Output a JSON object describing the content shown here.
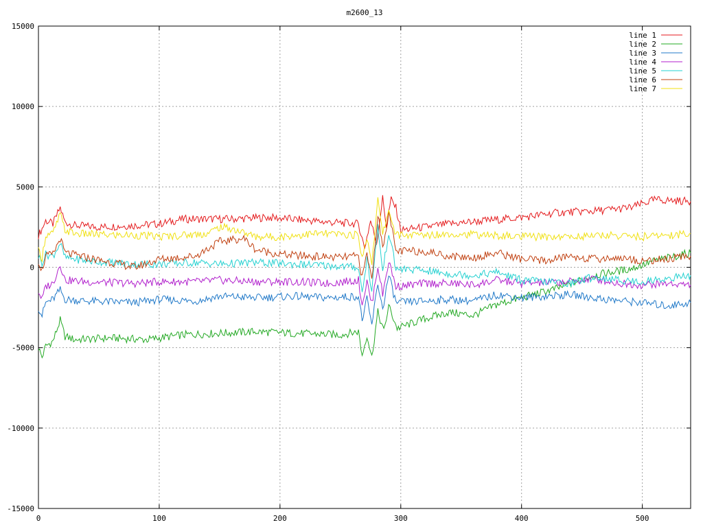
{
  "chart_data": {
    "type": "line",
    "title": "m2600_13",
    "xlabel": "",
    "ylabel": "",
    "xlim": [
      0,
      540
    ],
    "ylim": [
      -15000,
      15000
    ],
    "x_ticks": [
      "0",
      "100",
      "200",
      "300",
      "400",
      "500"
    ],
    "y_ticks": [
      "15000",
      "10000",
      "5000",
      "0",
      "-5000",
      "-10000",
      "-15000"
    ],
    "grid": true,
    "legend_position": "top-right",
    "series": [
      {
        "name": "line 1",
        "color": "#e41a1c",
        "points": [
          [
            0,
            2000
          ],
          [
            3,
            2400
          ],
          [
            6,
            2900
          ],
          [
            12,
            2700
          ],
          [
            18,
            3700
          ],
          [
            22,
            2800
          ],
          [
            30,
            2600
          ],
          [
            50,
            2500
          ],
          [
            80,
            2600
          ],
          [
            100,
            2700
          ],
          [
            120,
            3000
          ],
          [
            140,
            3000
          ],
          [
            160,
            3000
          ],
          [
            190,
            3100
          ],
          [
            210,
            3000
          ],
          [
            240,
            2800
          ],
          [
            265,
            2700
          ],
          [
            270,
            1200
          ],
          [
            275,
            2900
          ],
          [
            280,
            1500
          ],
          [
            285,
            4300
          ],
          [
            288,
            2600
          ],
          [
            292,
            4200
          ],
          [
            296,
            3700
          ],
          [
            300,
            2300
          ],
          [
            320,
            2500
          ],
          [
            340,
            2700
          ],
          [
            370,
            2900
          ],
          [
            400,
            3100
          ],
          [
            430,
            3400
          ],
          [
            460,
            3500
          ],
          [
            490,
            3700
          ],
          [
            510,
            4200
          ],
          [
            540,
            4100
          ]
        ]
      },
      {
        "name": "line 2",
        "color": "#22a822",
        "points": [
          [
            0,
            -5000
          ],
          [
            3,
            -5600
          ],
          [
            6,
            -4900
          ],
          [
            12,
            -4600
          ],
          [
            18,
            -3300
          ],
          [
            22,
            -4300
          ],
          [
            30,
            -4500
          ],
          [
            60,
            -4400
          ],
          [
            90,
            -4500
          ],
          [
            120,
            -4200
          ],
          [
            150,
            -4100
          ],
          [
            180,
            -4000
          ],
          [
            210,
            -4100
          ],
          [
            250,
            -4200
          ],
          [
            265,
            -4000
          ],
          [
            268,
            -5500
          ],
          [
            272,
            -4200
          ],
          [
            276,
            -5600
          ],
          [
            281,
            -2800
          ],
          [
            286,
            -4000
          ],
          [
            290,
            -2400
          ],
          [
            297,
            -3800
          ],
          [
            320,
            -3200
          ],
          [
            340,
            -2800
          ],
          [
            360,
            -3000
          ],
          [
            380,
            -2300
          ],
          [
            400,
            -1900
          ],
          [
            430,
            -1300
          ],
          [
            460,
            -500
          ],
          [
            490,
            -100
          ],
          [
            510,
            400
          ],
          [
            540,
            900
          ]
        ]
      },
      {
        "name": "line 3",
        "color": "#1f78c8",
        "points": [
          [
            0,
            -2500
          ],
          [
            3,
            -3000
          ],
          [
            6,
            -2200
          ],
          [
            12,
            -2000
          ],
          [
            18,
            -1400
          ],
          [
            22,
            -2000
          ],
          [
            40,
            -2100
          ],
          [
            80,
            -2200
          ],
          [
            100,
            -2000
          ],
          [
            130,
            -2100
          ],
          [
            150,
            -1800
          ],
          [
            180,
            -1900
          ],
          [
            210,
            -1800
          ],
          [
            240,
            -1900
          ],
          [
            265,
            -1800
          ],
          [
            268,
            -3300
          ],
          [
            272,
            -2000
          ],
          [
            276,
            -3600
          ],
          [
            281,
            -1000
          ],
          [
            285,
            -2600
          ],
          [
            290,
            -500
          ],
          [
            296,
            -2200
          ],
          [
            320,
            -2100
          ],
          [
            340,
            -2000
          ],
          [
            360,
            -2100
          ],
          [
            380,
            -1700
          ],
          [
            400,
            -1900
          ],
          [
            440,
            -1700
          ],
          [
            470,
            -2000
          ],
          [
            500,
            -2200
          ],
          [
            520,
            -2400
          ],
          [
            540,
            -2200
          ]
        ]
      },
      {
        "name": "line 4",
        "color": "#b01ecc",
        "points": [
          [
            0,
            -1500
          ],
          [
            3,
            -2000
          ],
          [
            6,
            -1200
          ],
          [
            12,
            -1000
          ],
          [
            18,
            200
          ],
          [
            22,
            -800
          ],
          [
            40,
            -900
          ],
          [
            80,
            -1000
          ],
          [
            100,
            -900
          ],
          [
            130,
            -900
          ],
          [
            150,
            -800
          ],
          [
            180,
            -900
          ],
          [
            210,
            -900
          ],
          [
            240,
            -1000
          ],
          [
            265,
            -800
          ],
          [
            268,
            -2300
          ],
          [
            272,
            -900
          ],
          [
            276,
            -2300
          ],
          [
            281,
            100
          ],
          [
            285,
            -1700
          ],
          [
            290,
            400
          ],
          [
            296,
            -1200
          ],
          [
            320,
            -1000
          ],
          [
            340,
            -1000
          ],
          [
            360,
            -1100
          ],
          [
            380,
            -800
          ],
          [
            400,
            -1000
          ],
          [
            440,
            -900
          ],
          [
            460,
            -700
          ],
          [
            480,
            -1000
          ],
          [
            500,
            -1100
          ],
          [
            520,
            -1000
          ],
          [
            540,
            -1100
          ]
        ]
      },
      {
        "name": "line 5",
        "color": "#22d0d0",
        "points": [
          [
            0,
            700
          ],
          [
            3,
            300
          ],
          [
            6,
            800
          ],
          [
            12,
            700
          ],
          [
            18,
            1500
          ],
          [
            22,
            600
          ],
          [
            40,
            400
          ],
          [
            80,
            200
          ],
          [
            100,
            200
          ],
          [
            130,
            300
          ],
          [
            150,
            200
          ],
          [
            180,
            300
          ],
          [
            210,
            200
          ],
          [
            240,
            100
          ],
          [
            265,
            0
          ],
          [
            268,
            -1600
          ],
          [
            272,
            600
          ],
          [
            276,
            -1500
          ],
          [
            281,
            2600
          ],
          [
            285,
            -300
          ],
          [
            290,
            2200
          ],
          [
            296,
            -100
          ],
          [
            320,
            -200
          ],
          [
            340,
            -400
          ],
          [
            360,
            -500
          ],
          [
            380,
            -300
          ],
          [
            400,
            -800
          ],
          [
            420,
            -900
          ],
          [
            440,
            -1000
          ],
          [
            460,
            -600
          ],
          [
            480,
            -800
          ],
          [
            500,
            -900
          ],
          [
            520,
            -700
          ],
          [
            540,
            -500
          ]
        ]
      },
      {
        "name": "line 6",
        "color": "#c04010",
        "points": [
          [
            0,
            400
          ],
          [
            3,
            -200
          ],
          [
            6,
            700
          ],
          [
            12,
            800
          ],
          [
            18,
            1800
          ],
          [
            22,
            900
          ],
          [
            40,
            600
          ],
          [
            60,
            300
          ],
          [
            80,
            0
          ],
          [
            100,
            500
          ],
          [
            130,
            700
          ],
          [
            150,
            1600
          ],
          [
            170,
            1800
          ],
          [
            180,
            1100
          ],
          [
            200,
            800
          ],
          [
            220,
            700
          ],
          [
            250,
            600
          ],
          [
            265,
            700
          ],
          [
            268,
            -700
          ],
          [
            272,
            900
          ],
          [
            276,
            -800
          ],
          [
            281,
            3300
          ],
          [
            285,
            1200
          ],
          [
            290,
            3400
          ],
          [
            296,
            1000
          ],
          [
            320,
            1000
          ],
          [
            340,
            700
          ],
          [
            360,
            600
          ],
          [
            380,
            900
          ],
          [
            400,
            500
          ],
          [
            420,
            400
          ],
          [
            440,
            700
          ],
          [
            460,
            500
          ],
          [
            480,
            600
          ],
          [
            500,
            400
          ],
          [
            520,
            500
          ],
          [
            540,
            700
          ]
        ]
      },
      {
        "name": "line 7",
        "color": "#f0e010",
        "points": [
          [
            0,
            1000
          ],
          [
            3,
            600
          ],
          [
            6,
            2000
          ],
          [
            12,
            2100
          ],
          [
            18,
            3300
          ],
          [
            22,
            2300
          ],
          [
            30,
            2100
          ],
          [
            60,
            2000
          ],
          [
            80,
            2000
          ],
          [
            100,
            1900
          ],
          [
            120,
            2000
          ],
          [
            140,
            2100
          ],
          [
            150,
            2500
          ],
          [
            160,
            2400
          ],
          [
            180,
            1900
          ],
          [
            200,
            1900
          ],
          [
            230,
            2100
          ],
          [
            265,
            2000
          ],
          [
            268,
            500
          ],
          [
            272,
            1900
          ],
          [
            276,
            300
          ],
          [
            281,
            4200
          ],
          [
            285,
            2000
          ],
          [
            290,
            3600
          ],
          [
            296,
            2000
          ],
          [
            320,
            2000
          ],
          [
            340,
            2100
          ],
          [
            370,
            2000
          ],
          [
            400,
            1900
          ],
          [
            440,
            1900
          ],
          [
            470,
            2000
          ],
          [
            500,
            1900
          ],
          [
            520,
            2000
          ],
          [
            540,
            2100
          ]
        ]
      }
    ]
  }
}
